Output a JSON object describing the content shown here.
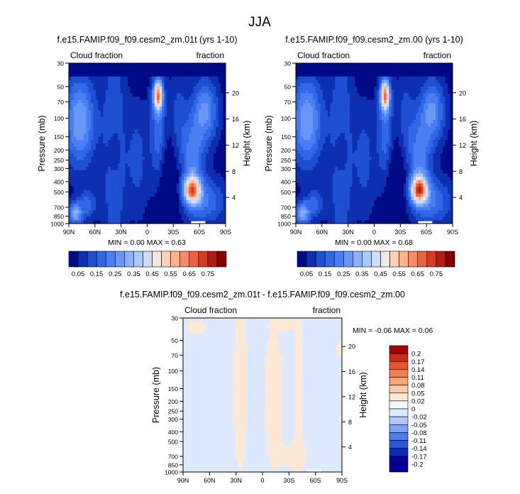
{
  "main_title": "JJA",
  "colormap": {
    "full": [
      "#000a84",
      "#0d2fb0",
      "#1f4fd3",
      "#3268e8",
      "#4a7ff3",
      "#6a97f6",
      "#8ab0f9",
      "#abc9fb",
      "#cbdffd",
      "#f3e8de",
      "#fcd1b6",
      "#fbb28e",
      "#f68c66",
      "#ea6443",
      "#d53b27",
      "#b41b15",
      "#830000"
    ],
    "diff": [
      "#00009a",
      "#0a2dbd",
      "#2a57dc",
      "#4e7de9",
      "#7ea2f2",
      "#b1c8fa",
      "#dde9fe",
      "#f7f7f7",
      "#fde7d5",
      "#fcc9a7",
      "#f9a679",
      "#f27f52",
      "#e5532f",
      "#cc2a17",
      "#9e0808"
    ]
  },
  "chart_data": [
    {
      "type": "heatmap",
      "title": "f.e15.FAMIP.f09_f09.cesm2_zm.01t (yrs 1-10)",
      "left_label": "Cloud fraction",
      "right_label": "fraction",
      "xlabel": "",
      "ylabel": "Pressure (mb)",
      "ylabel_right": "Height (km)",
      "x_ticks": [
        "90N",
        "60N",
        "30N",
        "0",
        "30S",
        "60S",
        "90S"
      ],
      "y_ticks": [
        "30",
        "50",
        "70",
        "100",
        "150",
        "200",
        "250",
        "300",
        "400",
        "500",
        "700",
        "850",
        "1000"
      ],
      "height_ticks": [
        "20",
        "16",
        "12",
        "8",
        "4"
      ],
      "stats": "MIN =   0.00  MAX =   0.63",
      "colorbar_labels": [
        "0.05",
        "0.15",
        "0.25",
        "0.35",
        "0.45",
        "0.55",
        "0.65",
        "0.75"
      ],
      "min": 0.0,
      "max": 0.63
    },
    {
      "type": "heatmap",
      "title": "f.e15.FAMIP.f09_f09.cesm2_zm.00 (yrs 1-10)",
      "left_label": "Cloud fraction",
      "right_label": "fraction",
      "xlabel": "",
      "ylabel": "Pressure (mb)",
      "ylabel_right": "Height (km)",
      "x_ticks": [
        "90N",
        "60N",
        "30N",
        "0",
        "30S",
        "60S",
        "90S"
      ],
      "y_ticks": [
        "30",
        "50",
        "70",
        "100",
        "150",
        "200",
        "250",
        "300",
        "400",
        "500",
        "700",
        "850",
        "1000"
      ],
      "height_ticks": [
        "20",
        "16",
        "12",
        "8",
        "4"
      ],
      "stats": "MIN =   0.00  MAX =   0.68",
      "colorbar_labels": [
        "0.05",
        "0.15",
        "0.25",
        "0.35",
        "0.45",
        "0.55",
        "0.65",
        "0.75"
      ],
      "min": 0.0,
      "max": 0.68
    },
    {
      "type": "heatmap",
      "title": "f.e15.FAMIP.f09_f09.cesm2_zm.01t - f.e15.FAMIP.f09_f09.cesm2_zm.00",
      "left_label": "Cloud fraction",
      "right_label": "fraction",
      "xlabel": "",
      "ylabel": "Pressure (mb)",
      "ylabel_right": "Height (km)",
      "x_ticks": [
        "90N",
        "60N",
        "30N",
        "0",
        "30S",
        "60S",
        "90S"
      ],
      "y_ticks": [
        "30",
        "50",
        "70",
        "100",
        "150",
        "200",
        "250",
        "300",
        "400",
        "500",
        "700",
        "850",
        "1000"
      ],
      "height_ticks": [
        "20",
        "16",
        "12",
        "8",
        "4"
      ],
      "stats": "MIN =  -0.06  MAX =   0.06",
      "colorbar_labels": [
        "0.2",
        "0.17",
        "0.14",
        "0.11",
        "0.08",
        "0.05",
        "0.02",
        "0",
        "-0.02",
        "-0.05",
        "-0.08",
        "-0.11",
        "-0.14",
        "-0.17",
        "-0.2"
      ],
      "min": -0.06,
      "max": 0.06
    }
  ]
}
